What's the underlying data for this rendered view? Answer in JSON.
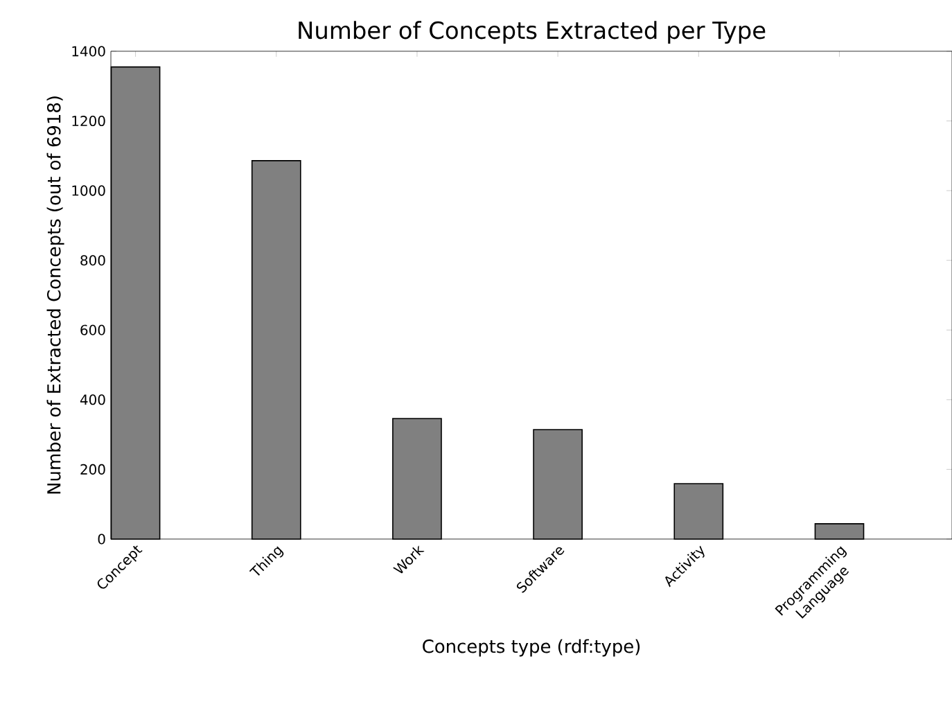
{
  "chart_data": {
    "type": "bar",
    "title": "Number of Concepts Extracted per Type",
    "xlabel": "Concepts type (rdf:type)",
    "ylabel": "Number of Extracted Concepts (out of 6918)",
    "categories": [
      "Concept",
      "Thing",
      "Work",
      "Software",
      "Activity",
      "Programming Language"
    ],
    "values": [
      1355,
      1086,
      346,
      314,
      159,
      44
    ],
    "color": "#808080",
    "ylim": [
      0,
      1400
    ],
    "yticks": [
      0,
      200,
      400,
      600,
      800,
      1000,
      1200,
      1400
    ]
  }
}
